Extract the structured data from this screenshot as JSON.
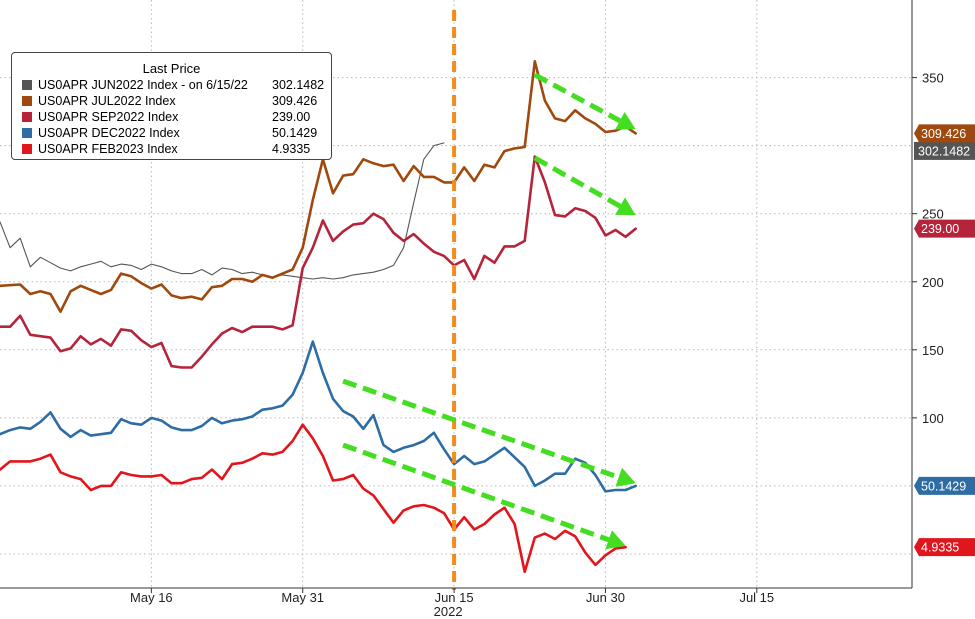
{
  "chart_data": {
    "type": "line",
    "legend": {
      "title": "Last Price",
      "placement": "top-left"
    },
    "x_ticks": [
      {
        "label": "May 16",
        "day": 15
      },
      {
        "label": "May 31",
        "day": 30
      },
      {
        "label": "Jun 15",
        "day": 45
      },
      {
        "label": "Jun 30",
        "day": 60
      },
      {
        "label": "Jul 15",
        "day": 75
      }
    ],
    "x_year_label": "2022",
    "y_ticks": [
      350,
      250,
      200,
      150,
      100
    ],
    "ylim": [
      -25,
      407
    ],
    "xlim": [
      0,
      88
    ],
    "grid": true,
    "marker_line": {
      "day": 45,
      "color": "#f28c1c"
    },
    "series": [
      {
        "name": "US0APR JUN2022 Index -  on 6/15/22",
        "value_label": "302.1482",
        "color": "#555555",
        "points": [
          [
            0,
            244
          ],
          [
            1,
            225
          ],
          [
            2,
            232
          ],
          [
            3,
            211
          ],
          [
            4,
            218
          ],
          [
            5,
            214
          ],
          [
            6,
            210
          ],
          [
            7,
            208
          ],
          [
            8,
            211
          ],
          [
            9,
            213
          ],
          [
            10,
            215
          ],
          [
            11,
            211
          ],
          [
            12,
            213
          ],
          [
            13,
            212
          ],
          [
            14,
            209
          ],
          [
            15,
            213
          ],
          [
            16,
            211
          ],
          [
            17,
            208
          ],
          [
            18,
            206
          ],
          [
            19,
            206
          ],
          [
            20,
            209
          ],
          [
            21,
            205
          ],
          [
            22,
            210
          ],
          [
            23,
            209
          ],
          [
            24,
            206
          ],
          [
            25,
            207
          ],
          [
            26,
            205
          ],
          [
            27,
            203
          ],
          [
            28,
            205
          ],
          [
            29,
            204
          ],
          [
            30,
            203
          ],
          [
            31,
            202
          ],
          [
            32,
            203
          ],
          [
            33,
            202
          ],
          [
            34,
            203
          ],
          [
            35,
            205
          ],
          [
            36,
            206
          ],
          [
            37,
            207
          ],
          [
            38,
            209
          ],
          [
            39,
            212
          ],
          [
            40,
            225
          ],
          [
            41,
            258
          ],
          [
            42,
            290
          ],
          [
            43,
            300
          ],
          [
            44,
            302
          ]
        ],
        "badge": false
      },
      {
        "name": "US0APR JUL2022 Index",
        "value_label": "309.426",
        "color": "#a0490f",
        "points": [
          [
            0,
            197
          ],
          [
            2,
            198
          ],
          [
            3,
            191
          ],
          [
            4,
            193
          ],
          [
            5,
            191
          ],
          [
            6,
            178
          ],
          [
            7,
            193
          ],
          [
            8,
            197
          ],
          [
            9,
            194
          ],
          [
            10,
            191
          ],
          [
            11,
            194
          ],
          [
            12,
            206
          ],
          [
            13,
            204
          ],
          [
            14,
            199
          ],
          [
            15,
            195
          ],
          [
            16,
            198
          ],
          [
            17,
            190
          ],
          [
            18,
            188
          ],
          [
            19,
            189
          ],
          [
            20,
            187
          ],
          [
            21,
            196
          ],
          [
            22,
            197
          ],
          [
            23,
            202
          ],
          [
            24,
            202
          ],
          [
            25,
            200
          ],
          [
            26,
            205
          ],
          [
            27,
            203
          ],
          [
            28,
            206
          ],
          [
            29,
            209
          ],
          [
            30,
            225
          ],
          [
            31,
            260
          ],
          [
            32,
            290
          ],
          [
            33,
            265
          ],
          [
            34,
            278
          ],
          [
            35,
            279
          ],
          [
            36,
            290
          ],
          [
            37,
            287
          ],
          [
            38,
            285
          ],
          [
            39,
            286
          ],
          [
            40,
            274
          ],
          [
            41,
            285
          ],
          [
            42,
            277
          ],
          [
            43,
            277
          ],
          [
            44,
            273
          ],
          [
            45,
            273
          ],
          [
            46,
            284
          ],
          [
            47,
            274
          ],
          [
            48,
            286
          ],
          [
            49,
            284
          ],
          [
            50,
            296
          ],
          [
            51,
            298
          ],
          [
            52,
            299
          ],
          [
            53,
            362
          ],
          [
            54,
            333
          ],
          [
            55,
            320
          ],
          [
            56,
            318
          ],
          [
            57,
            326
          ],
          [
            58,
            320
          ],
          [
            59,
            316
          ],
          [
            60,
            310
          ],
          [
            61,
            311
          ],
          [
            62,
            314
          ],
          [
            63,
            309
          ]
        ],
        "badge": true
      },
      {
        "name": "US0APR SEP2022 Index",
        "value_label": "239.00",
        "color": "#b5243b",
        "points": [
          [
            0,
            167
          ],
          [
            1,
            167
          ],
          [
            2,
            175
          ],
          [
            3,
            161
          ],
          [
            4,
            160
          ],
          [
            5,
            159
          ],
          [
            6,
            149
          ],
          [
            7,
            151
          ],
          [
            8,
            160
          ],
          [
            9,
            154
          ],
          [
            10,
            158
          ],
          [
            11,
            153
          ],
          [
            12,
            165
          ],
          [
            13,
            164
          ],
          [
            14,
            157
          ],
          [
            15,
            152
          ],
          [
            16,
            155
          ],
          [
            17,
            138
          ],
          [
            18,
            137
          ],
          [
            19,
            137
          ],
          [
            20,
            145
          ],
          [
            21,
            154
          ],
          [
            22,
            162
          ],
          [
            23,
            166
          ],
          [
            24,
            163
          ],
          [
            25,
            167
          ],
          [
            26,
            167
          ],
          [
            27,
            167
          ],
          [
            28,
            165
          ],
          [
            29,
            168
          ],
          [
            30,
            210
          ],
          [
            31,
            225
          ],
          [
            32,
            245
          ],
          [
            33,
            230
          ],
          [
            34,
            237
          ],
          [
            35,
            242
          ],
          [
            36,
            243
          ],
          [
            37,
            250
          ],
          [
            38,
            246
          ],
          [
            39,
            236
          ],
          [
            40,
            230
          ],
          [
            41,
            235
          ],
          [
            42,
            228
          ],
          [
            43,
            222
          ],
          [
            44,
            219
          ],
          [
            45,
            212
          ],
          [
            46,
            216
          ],
          [
            47,
            202
          ],
          [
            48,
            219
          ],
          [
            49,
            214
          ],
          [
            50,
            226
          ],
          [
            51,
            226
          ],
          [
            52,
            230
          ],
          [
            53,
            292
          ],
          [
            54,
            273
          ],
          [
            55,
            249
          ],
          [
            56,
            248
          ],
          [
            57,
            254
          ],
          [
            58,
            252
          ],
          [
            59,
            247
          ],
          [
            60,
            234
          ],
          [
            61,
            238
          ],
          [
            62,
            233
          ],
          [
            63,
            239
          ]
        ],
        "badge": true
      },
      {
        "name": "US0APR DEC2022 Index",
        "value_label": "50.1429",
        "color": "#2e6ca4",
        "points": [
          [
            0,
            88
          ],
          [
            1,
            91
          ],
          [
            2,
            93
          ],
          [
            3,
            92
          ],
          [
            4,
            97
          ],
          [
            5,
            104
          ],
          [
            6,
            92
          ],
          [
            7,
            86
          ],
          [
            8,
            91
          ],
          [
            9,
            87
          ],
          [
            10,
            88
          ],
          [
            11,
            89
          ],
          [
            12,
            99
          ],
          [
            13,
            96
          ],
          [
            14,
            95
          ],
          [
            15,
            100
          ],
          [
            16,
            98
          ],
          [
            17,
            93
          ],
          [
            18,
            91
          ],
          [
            19,
            91
          ],
          [
            20,
            94
          ],
          [
            21,
            100
          ],
          [
            22,
            96
          ],
          [
            23,
            98
          ],
          [
            24,
            99
          ],
          [
            25,
            101
          ],
          [
            26,
            106
          ],
          [
            27,
            107
          ],
          [
            28,
            109
          ],
          [
            29,
            117
          ],
          [
            30,
            133
          ],
          [
            31,
            156
          ],
          [
            32,
            133
          ],
          [
            33,
            114
          ],
          [
            34,
            105
          ],
          [
            35,
            101
          ],
          [
            36,
            92
          ],
          [
            37,
            102
          ],
          [
            38,
            80
          ],
          [
            39,
            75
          ],
          [
            40,
            78
          ],
          [
            41,
            80
          ],
          [
            42,
            83
          ],
          [
            43,
            89
          ],
          [
            44,
            77
          ],
          [
            45,
            66
          ],
          [
            46,
            72
          ],
          [
            47,
            66
          ],
          [
            48,
            68
          ],
          [
            49,
            73
          ],
          [
            50,
            78
          ],
          [
            51,
            71
          ],
          [
            52,
            64
          ],
          [
            53,
            50
          ],
          [
            54,
            54
          ],
          [
            55,
            59
          ],
          [
            56,
            59
          ],
          [
            57,
            70
          ],
          [
            58,
            67
          ],
          [
            59,
            58
          ],
          [
            60,
            46
          ],
          [
            61,
            47
          ],
          [
            62,
            47
          ],
          [
            63,
            50
          ]
        ],
        "badge": true
      },
      {
        "name": "US0APR FEB2023 Index",
        "value_label": "4.9335",
        "color": "#e1161c",
        "points": [
          [
            0,
            62
          ],
          [
            1,
            68
          ],
          [
            2,
            68
          ],
          [
            3,
            68
          ],
          [
            4,
            70
          ],
          [
            5,
            73
          ],
          [
            6,
            60
          ],
          [
            7,
            57
          ],
          [
            8,
            55
          ],
          [
            9,
            47
          ],
          [
            10,
            50
          ],
          [
            11,
            50
          ],
          [
            12,
            60
          ],
          [
            13,
            58
          ],
          [
            14,
            57
          ],
          [
            15,
            57
          ],
          [
            16,
            58
          ],
          [
            17,
            52
          ],
          [
            18,
            52
          ],
          [
            19,
            55
          ],
          [
            20,
            56
          ],
          [
            21,
            62
          ],
          [
            22,
            55
          ],
          [
            23,
            66
          ],
          [
            24,
            67
          ],
          [
            25,
            70
          ],
          [
            26,
            74
          ],
          [
            27,
            73
          ],
          [
            28,
            75
          ],
          [
            29,
            83
          ],
          [
            30,
            95
          ],
          [
            31,
            85
          ],
          [
            32,
            72
          ],
          [
            33,
            54
          ],
          [
            34,
            55
          ],
          [
            35,
            58
          ],
          [
            36,
            48
          ],
          [
            37,
            43
          ],
          [
            38,
            33
          ],
          [
            39,
            23
          ],
          [
            40,
            32
          ],
          [
            41,
            35
          ],
          [
            42,
            36
          ],
          [
            43,
            34
          ],
          [
            44,
            30
          ],
          [
            45,
            18
          ],
          [
            46,
            27
          ],
          [
            47,
            18
          ],
          [
            48,
            22
          ],
          [
            49,
            29
          ],
          [
            50,
            34
          ],
          [
            51,
            22
          ],
          [
            52,
            -13
          ],
          [
            53,
            12
          ],
          [
            54,
            15
          ],
          [
            55,
            11
          ],
          [
            56,
            17
          ],
          [
            57,
            13
          ],
          [
            58,
            1
          ],
          [
            59,
            -8
          ],
          [
            60,
            -1
          ],
          [
            61,
            4
          ],
          [
            62,
            5
          ]
        ],
        "badge": true
      }
    ],
    "trend_arrows": [
      {
        "from": [
          53,
          352
        ],
        "to": [
          63,
          312
        ]
      },
      {
        "from": [
          53,
          291
        ],
        "to": [
          63,
          249
        ]
      },
      {
        "from": [
          34,
          127
        ],
        "to": [
          63,
          52
        ]
      },
      {
        "from": [
          34,
          80
        ],
        "to": [
          62,
          6
        ]
      }
    ],
    "trend_arrow_color": "#44dd22"
  }
}
